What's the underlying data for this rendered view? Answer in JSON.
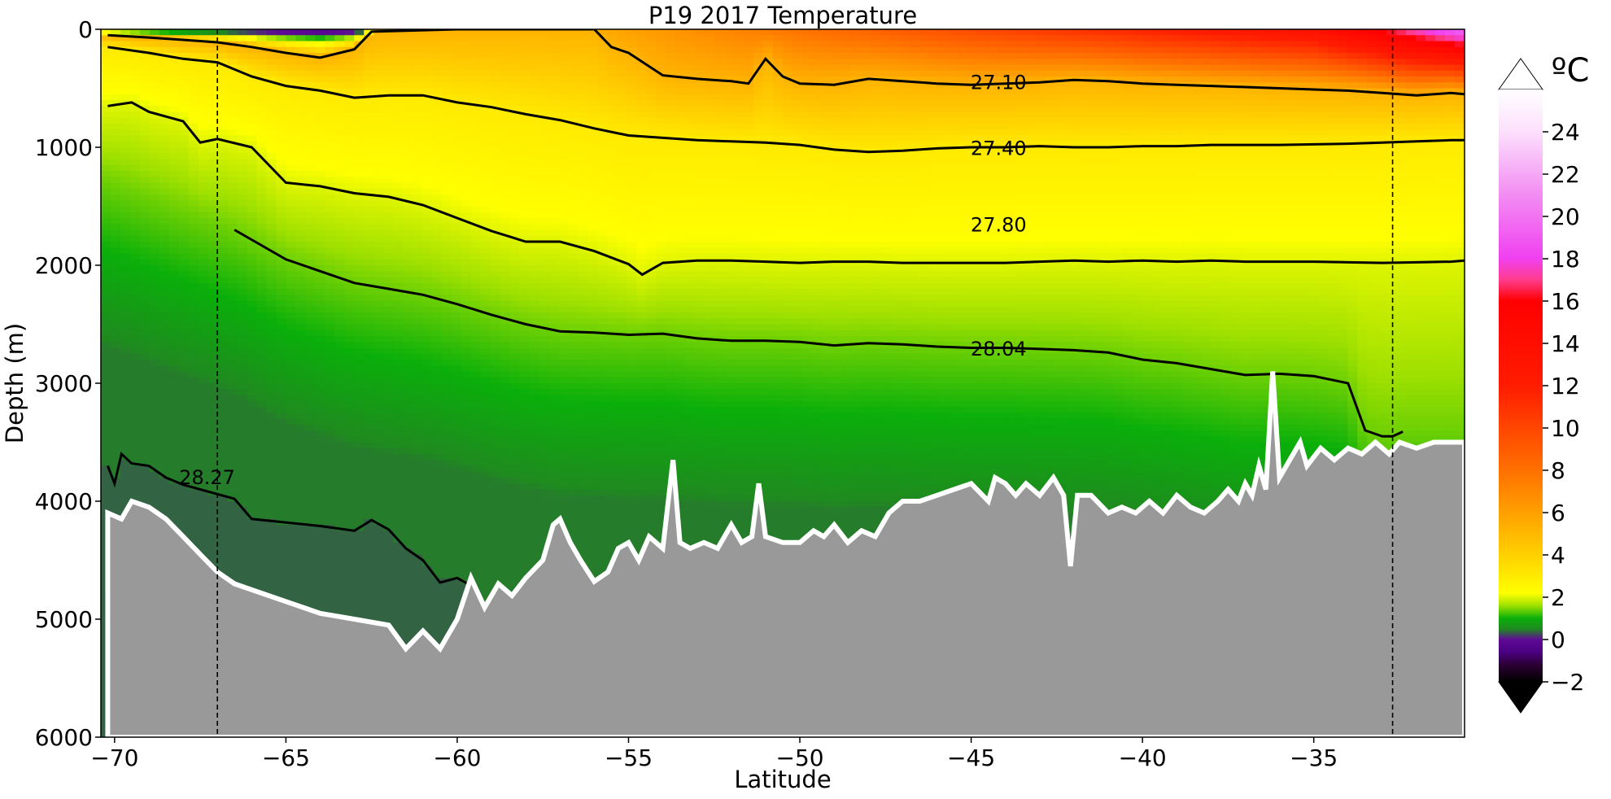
{
  "chart_data": {
    "type": "heatmap",
    "title": "P19 2017 Temperature",
    "xlabel": "Latitude",
    "ylabel": "Depth (m)",
    "xlim": [
      -70.4,
      -30.6
    ],
    "ylim": [
      6000,
      0
    ],
    "y_inverted": true,
    "x_ticks": [
      "−70",
      "−65",
      "−60",
      "−55",
      "−50",
      "−45",
      "−40",
      "−35"
    ],
    "x_tick_values": [
      -70,
      -65,
      -60,
      -55,
      -50,
      -45,
      -40,
      -35
    ],
    "y_ticks": [
      "0",
      "1000",
      "2000",
      "3000",
      "4000",
      "5000",
      "6000"
    ],
    "y_tick_values": [
      0,
      1000,
      2000,
      3000,
      4000,
      5000,
      6000
    ],
    "colorbar": {
      "unit": "ºC",
      "range": [
        -2,
        26
      ],
      "extend": "both",
      "tick_labels": [
        "−2",
        "0",
        "2",
        "4",
        "6",
        "8",
        "10",
        "12",
        "14",
        "16",
        "18",
        "20",
        "22",
        "24"
      ],
      "tick_values": [
        -2,
        0,
        2,
        4,
        6,
        8,
        10,
        12,
        14,
        16,
        18,
        20,
        22,
        24
      ],
      "stops": [
        {
          "t": -2,
          "color": "#000000"
        },
        {
          "t": -1.2,
          "color": "#2b0033"
        },
        {
          "t": -0.6,
          "color": "#4b0082"
        },
        {
          "t": 0,
          "color": "#5e0a96"
        },
        {
          "t": 0.5,
          "color": "#1f8a1f"
        },
        {
          "t": 1.0,
          "color": "#0aaf0a"
        },
        {
          "t": 1.6,
          "color": "#9ee000"
        },
        {
          "t": 2.2,
          "color": "#ffff00"
        },
        {
          "t": 4.0,
          "color": "#ffd000"
        },
        {
          "t": 6.0,
          "color": "#ffa000"
        },
        {
          "t": 8.0,
          "color": "#ff7000"
        },
        {
          "t": 12.0,
          "color": "#ff1c00"
        },
        {
          "t": 16.0,
          "color": "#ff0000"
        },
        {
          "t": 17.0,
          "color": "#ff3c8c"
        },
        {
          "t": 18.0,
          "color": "#f040f0"
        },
        {
          "t": 21.0,
          "color": "#f28cf2"
        },
        {
          "t": 24.0,
          "color": "#fce0fc"
        },
        {
          "t": 26.0,
          "color": "#ffffff"
        }
      ]
    },
    "reference_lines_x": [
      -67,
      -32.7
    ],
    "density_contours": [
      {
        "label": "27.10",
        "label_lat": -44.2,
        "label_depth": 450,
        "points": [
          [
            -70.2,
            50
          ],
          [
            -69,
            70
          ],
          [
            -68,
            90
          ],
          [
            -67,
            110
          ],
          [
            -66,
            150
          ],
          [
            -65,
            200
          ],
          [
            -64,
            240
          ],
          [
            -63,
            170
          ],
          [
            -62.5,
            20
          ],
          [
            -60,
            0
          ],
          [
            -58,
            0
          ],
          [
            -56,
            0
          ],
          [
            -55.5,
            150
          ],
          [
            -55,
            200
          ],
          [
            -54,
            390
          ],
          [
            -53,
            420
          ],
          [
            -52,
            440
          ],
          [
            -51.5,
            460
          ],
          [
            -51,
            250
          ],
          [
            -50.5,
            400
          ],
          [
            -50,
            460
          ],
          [
            -49,
            470
          ],
          [
            -48,
            420
          ],
          [
            -47,
            440
          ],
          [
            -46,
            460
          ],
          [
            -45,
            470
          ],
          [
            -44,
            460
          ],
          [
            -43,
            450
          ],
          [
            -42,
            430
          ],
          [
            -41,
            440
          ],
          [
            -40,
            460
          ],
          [
            -39,
            470
          ],
          [
            -38,
            480
          ],
          [
            -37,
            490
          ],
          [
            -36,
            500
          ],
          [
            -35,
            510
          ],
          [
            -34,
            520
          ],
          [
            -33,
            540
          ],
          [
            -32,
            560
          ],
          [
            -31,
            540
          ],
          [
            -30.6,
            550
          ]
        ]
      },
      {
        "label": "27.40",
        "label_lat": -44.2,
        "label_depth": 1010,
        "points": [
          [
            -70.2,
            150
          ],
          [
            -69,
            200
          ],
          [
            -68,
            250
          ],
          [
            -67,
            280
          ],
          [
            -66,
            400
          ],
          [
            -65,
            480
          ],
          [
            -64,
            520
          ],
          [
            -63,
            580
          ],
          [
            -62,
            560
          ],
          [
            -61,
            560
          ],
          [
            -60,
            620
          ],
          [
            -59,
            660
          ],
          [
            -58,
            720
          ],
          [
            -57,
            770
          ],
          [
            -56,
            840
          ],
          [
            -55,
            900
          ],
          [
            -54,
            920
          ],
          [
            -53,
            940
          ],
          [
            -52,
            950
          ],
          [
            -51,
            960
          ],
          [
            -50,
            980
          ],
          [
            -49,
            1020
          ],
          [
            -48,
            1040
          ],
          [
            -47,
            1030
          ],
          [
            -46,
            1010
          ],
          [
            -45,
            1000
          ],
          [
            -44,
            1000
          ],
          [
            -43,
            990
          ],
          [
            -42,
            1000
          ],
          [
            -41,
            1000
          ],
          [
            -40,
            990
          ],
          [
            -39,
            990
          ],
          [
            -38,
            980
          ],
          [
            -37,
            980
          ],
          [
            -36,
            980
          ],
          [
            -35,
            975
          ],
          [
            -34,
            970
          ],
          [
            -33,
            960
          ],
          [
            -32,
            950
          ],
          [
            -31,
            940
          ],
          [
            -30.6,
            940
          ]
        ]
      },
      {
        "label": "27.80",
        "label_lat": -44.2,
        "label_depth": 1660,
        "points": [
          [
            -70.2,
            650
          ],
          [
            -69.5,
            620
          ],
          [
            -69,
            700
          ],
          [
            -68,
            780
          ],
          [
            -67.5,
            960
          ],
          [
            -67,
            930
          ],
          [
            -66,
            1000
          ],
          [
            -65,
            1300
          ],
          [
            -64,
            1330
          ],
          [
            -63,
            1390
          ],
          [
            -62,
            1420
          ],
          [
            -61,
            1490
          ],
          [
            -60,
            1600
          ],
          [
            -59,
            1710
          ],
          [
            -58,
            1800
          ],
          [
            -57,
            1800
          ],
          [
            -56,
            1880
          ],
          [
            -55,
            1990
          ],
          [
            -54.6,
            2080
          ],
          [
            -54,
            1980
          ],
          [
            -53,
            1960
          ],
          [
            -52,
            1960
          ],
          [
            -51,
            1970
          ],
          [
            -50,
            1980
          ],
          [
            -49,
            1970
          ],
          [
            -48,
            1970
          ],
          [
            -47,
            1980
          ],
          [
            -46,
            1980
          ],
          [
            -45,
            1980
          ],
          [
            -44,
            1980
          ],
          [
            -43,
            1970
          ],
          [
            -42,
            1960
          ],
          [
            -41,
            1970
          ],
          [
            -40,
            1960
          ],
          [
            -39,
            1970
          ],
          [
            -38,
            1960
          ],
          [
            -37,
            1970
          ],
          [
            -36,
            1970
          ],
          [
            -35,
            1970
          ],
          [
            -34,
            1975
          ],
          [
            -33,
            1980
          ],
          [
            -32,
            1975
          ],
          [
            -31,
            1970
          ],
          [
            -30.6,
            1960
          ]
        ]
      },
      {
        "label": "28.04",
        "label_lat": -44.2,
        "label_depth": 2710,
        "points": [
          [
            -66.5,
            1700
          ],
          [
            -65,
            1950
          ],
          [
            -64,
            2050
          ],
          [
            -63,
            2150
          ],
          [
            -62,
            2200
          ],
          [
            -61,
            2250
          ],
          [
            -60,
            2330
          ],
          [
            -59,
            2420
          ],
          [
            -58,
            2500
          ],
          [
            -57,
            2560
          ],
          [
            -56,
            2570
          ],
          [
            -55,
            2590
          ],
          [
            -54,
            2580
          ],
          [
            -53,
            2620
          ],
          [
            -52,
            2640
          ],
          [
            -51,
            2640
          ],
          [
            -50,
            2650
          ],
          [
            -49,
            2680
          ],
          [
            -48,
            2660
          ],
          [
            -47,
            2670
          ],
          [
            -46,
            2690
          ],
          [
            -45,
            2700
          ],
          [
            -44,
            2700
          ],
          [
            -43,
            2710
          ],
          [
            -42,
            2720
          ],
          [
            -41,
            2740
          ],
          [
            -40,
            2800
          ],
          [
            -39,
            2830
          ],
          [
            -38,
            2880
          ],
          [
            -37,
            2930
          ],
          [
            -36,
            2920
          ],
          [
            -35,
            2940
          ],
          [
            -34,
            3000
          ],
          [
            -33.5,
            3400
          ],
          [
            -33,
            3450
          ],
          [
            -32.7,
            3450
          ],
          [
            -32.4,
            3410
          ]
        ]
      },
      {
        "label": "28.27",
        "label_lat": -67.3,
        "label_depth": 3800,
        "points": [
          [
            -70.2,
            3700
          ],
          [
            -70,
            3850
          ],
          [
            -69.8,
            3600
          ],
          [
            -69.5,
            3680
          ],
          [
            -69,
            3700
          ],
          [
            -68.5,
            3800
          ],
          [
            -68,
            3860
          ],
          [
            -66.5,
            3980
          ],
          [
            -66,
            4150
          ],
          [
            -65,
            4180
          ],
          [
            -64,
            4210
          ],
          [
            -63,
            4250
          ],
          [
            -62.5,
            4160
          ],
          [
            -62,
            4240
          ],
          [
            -61.5,
            4400
          ],
          [
            -61,
            4500
          ],
          [
            -60.5,
            4690
          ],
          [
            -60,
            4650
          ],
          [
            -59.7,
            4700
          ]
        ]
      }
    ],
    "seafloor_depth_profile": [
      [
        -70.2,
        4100
      ],
      [
        -69.8,
        4150
      ],
      [
        -69.5,
        4000
      ],
      [
        -69,
        4050
      ],
      [
        -68.5,
        4150
      ],
      [
        -68,
        4300
      ],
      [
        -67.5,
        4450
      ],
      [
        -67,
        4600
      ],
      [
        -66.5,
        4700
      ],
      [
        -66,
        4750
      ],
      [
        -65,
        4850
      ],
      [
        -64,
        4950
      ],
      [
        -63,
        5000
      ],
      [
        -62,
        5050
      ],
      [
        -61.5,
        5250
      ],
      [
        -61,
        5100
      ],
      [
        -60.5,
        5250
      ],
      [
        -60,
        5000
      ],
      [
        -59.6,
        4650
      ],
      [
        -59.2,
        4900
      ],
      [
        -58.8,
        4700
      ],
      [
        -58.4,
        4800
      ],
      [
        -58,
        4650
      ],
      [
        -57.5,
        4500
      ],
      [
        -57.2,
        4200
      ],
      [
        -57,
        4150
      ],
      [
        -56.7,
        4350
      ],
      [
        -56.4,
        4500
      ],
      [
        -56,
        4680
      ],
      [
        -55.6,
        4600
      ],
      [
        -55.3,
        4400
      ],
      [
        -55,
        4350
      ],
      [
        -54.7,
        4500
      ],
      [
        -54.4,
        4300
      ],
      [
        -54,
        4400
      ],
      [
        -53.7,
        3650
      ],
      [
        -53.5,
        4350
      ],
      [
        -53.2,
        4400
      ],
      [
        -52.8,
        4350
      ],
      [
        -52.4,
        4400
      ],
      [
        -52,
        4200
      ],
      [
        -51.7,
        4350
      ],
      [
        -51.4,
        4300
      ],
      [
        -51.2,
        3850
      ],
      [
        -51,
        4300
      ],
      [
        -50.5,
        4350
      ],
      [
        -50,
        4350
      ],
      [
        -49.6,
        4250
      ],
      [
        -49.3,
        4300
      ],
      [
        -49,
        4200
      ],
      [
        -48.6,
        4350
      ],
      [
        -48.2,
        4250
      ],
      [
        -47.8,
        4300
      ],
      [
        -47.4,
        4100
      ],
      [
        -47,
        4000
      ],
      [
        -46.5,
        4000
      ],
      [
        -46,
        3950
      ],
      [
        -45.5,
        3900
      ],
      [
        -45,
        3850
      ],
      [
        -44.5,
        4000
      ],
      [
        -44.3,
        3800
      ],
      [
        -44,
        3850
      ],
      [
        -43.7,
        3950
      ],
      [
        -43.4,
        3850
      ],
      [
        -43,
        3950
      ],
      [
        -42.6,
        3800
      ],
      [
        -42.3,
        3950
      ],
      [
        -42.1,
        4550
      ],
      [
        -41.9,
        3950
      ],
      [
        -41.5,
        3950
      ],
      [
        -41,
        4100
      ],
      [
        -40.6,
        4050
      ],
      [
        -40.2,
        4100
      ],
      [
        -39.8,
        4000
      ],
      [
        -39.4,
        4100
      ],
      [
        -39,
        3950
      ],
      [
        -38.6,
        4050
      ],
      [
        -38.2,
        4100
      ],
      [
        -37.8,
        4000
      ],
      [
        -37.5,
        3900
      ],
      [
        -37.2,
        4000
      ],
      [
        -37,
        3850
      ],
      [
        -36.8,
        3950
      ],
      [
        -36.6,
        3700
      ],
      [
        -36.4,
        3900
      ],
      [
        -36.2,
        2900
      ],
      [
        -36,
        3800
      ],
      [
        -35.7,
        3650
      ],
      [
        -35.4,
        3500
      ],
      [
        -35.2,
        3700
      ],
      [
        -34.8,
        3550
      ],
      [
        -34.4,
        3650
      ],
      [
        -34,
        3550
      ],
      [
        -33.6,
        3600
      ],
      [
        -33.2,
        3500
      ],
      [
        -32.8,
        3600
      ],
      [
        -32.5,
        3500
      ],
      [
        -32,
        3550
      ],
      [
        -31.5,
        3500
      ],
      [
        -30.6,
        3500
      ]
    ]
  }
}
